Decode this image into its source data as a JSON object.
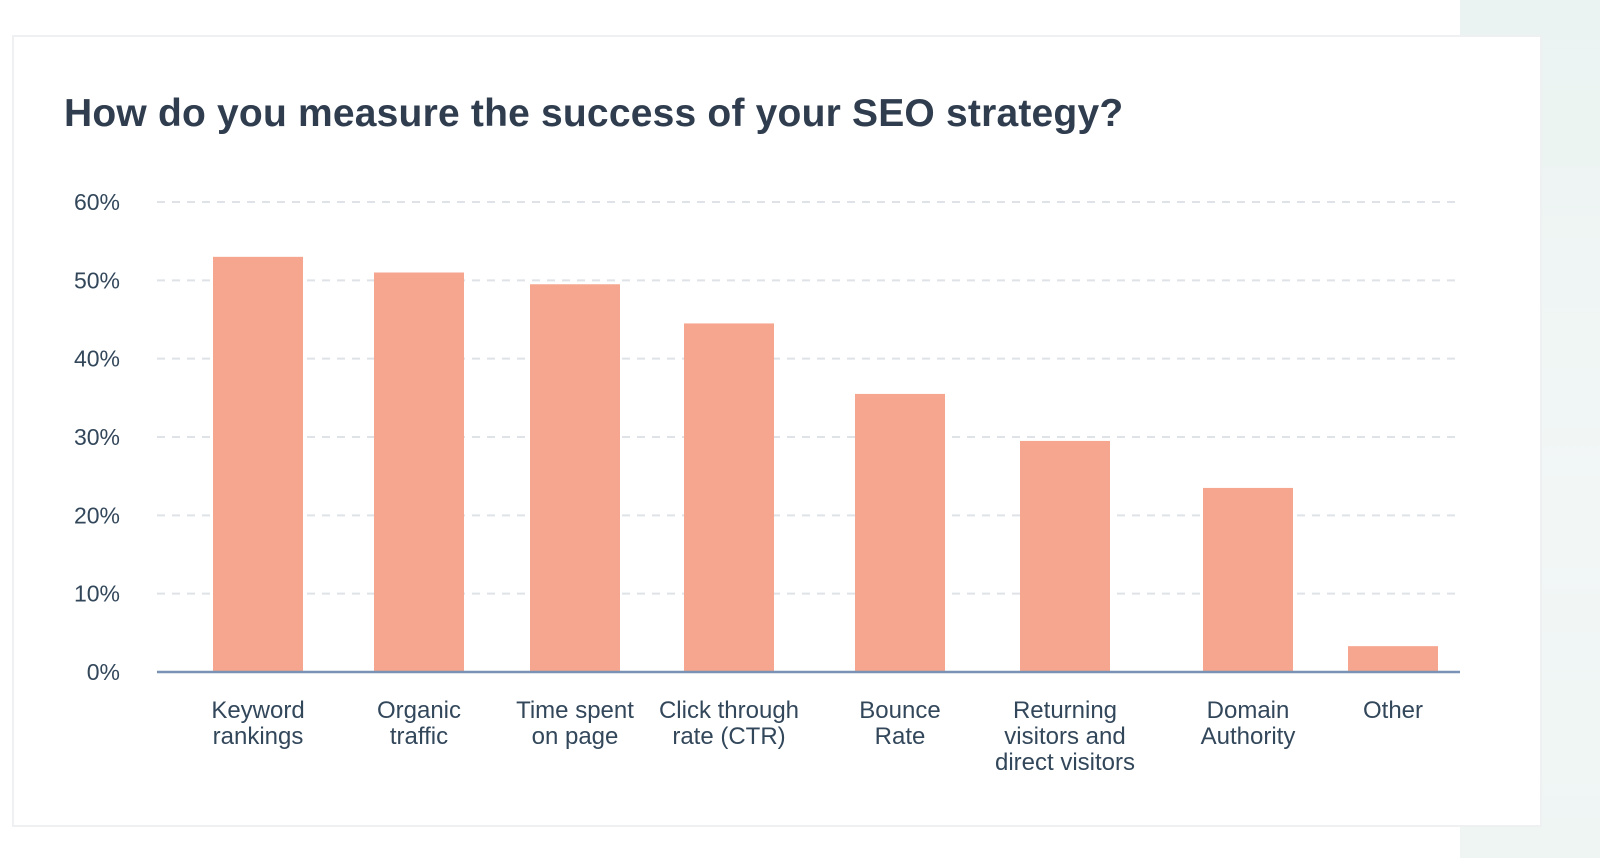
{
  "chart_data": {
    "type": "bar",
    "title": "How do you measure the success of your SEO strategy?",
    "xlabel": "",
    "ylabel": "",
    "ylim": [
      0,
      60
    ],
    "yticks": [
      "0%",
      "10%",
      "20%",
      "30%",
      "40%",
      "50%",
      "60%"
    ],
    "grid": true,
    "categories": [
      [
        "Keyword",
        "rankings"
      ],
      [
        "Organic",
        "traffic"
      ],
      [
        "Time spent",
        "on page"
      ],
      [
        "Click through",
        "rate (CTR)"
      ],
      [
        "Bounce",
        "Rate"
      ],
      [
        "Returning",
        "visitors and",
        "direct visitors"
      ],
      [
        "Domain",
        "Authority"
      ],
      [
        "Other"
      ]
    ],
    "values": [
      53,
      51,
      49.5,
      44.5,
      35.5,
      29.5,
      23.5,
      3.3
    ],
    "colors": {
      "bar": "#f6a68f",
      "axis": "#7a93b5",
      "grid": "#dfe3e8",
      "text": "#33475b",
      "title": "#2f3d4f"
    }
  }
}
